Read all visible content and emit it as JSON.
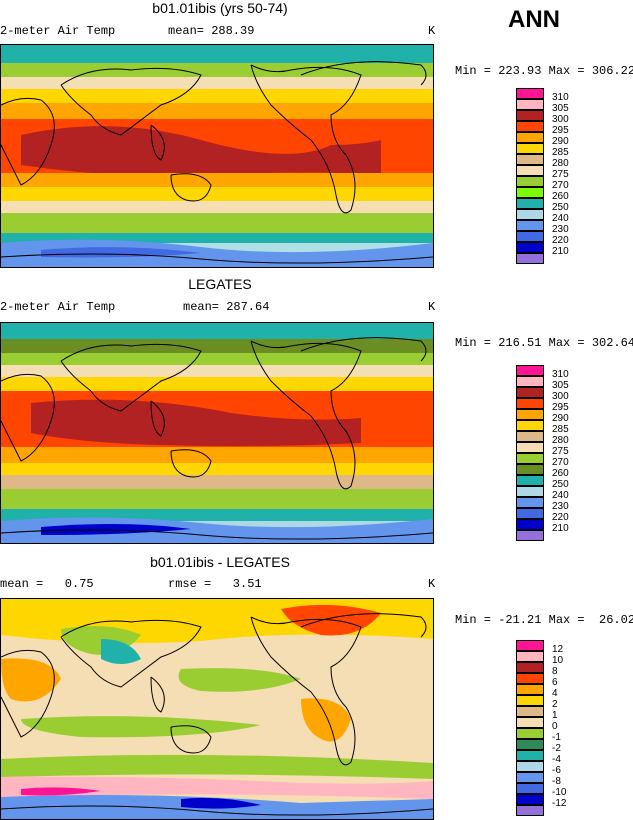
{
  "season": "ANN",
  "panels": [
    {
      "title": "b01.01ibis (yrs 50-74)",
      "left_text": "2-meter Air Temp",
      "mid_text": "mean= 288.39",
      "units": "K",
      "minmax": "Min = 223.93 Max = 306.22",
      "levels": [
        "310",
        "305",
        "300",
        "295",
        "290",
        "285",
        "280",
        "275",
        "270",
        "260",
        "250",
        "240",
        "230",
        "220",
        "210"
      ],
      "colors": [
        "#ff1493",
        "#ffb6c1",
        "#b22222",
        "#ff4500",
        "#ffa500",
        "#ffd700",
        "#deb887",
        "#f5deb3",
        "#9acd32",
        "#7cfc00",
        "#20b2aa",
        "#add8e6",
        "#6495ed",
        "#4169e1",
        "#0000cd",
        "#9370db"
      ]
    },
    {
      "title": "LEGATES",
      "left_text": "2-meter Air Temp",
      "mid_text": "mean= 287.64",
      "units": "K",
      "minmax": "Min = 216.51 Max = 302.64",
      "levels": [
        "310",
        "305",
        "300",
        "295",
        "290",
        "285",
        "280",
        "275",
        "270",
        "260",
        "250",
        "240",
        "230",
        "220",
        "210"
      ],
      "colors": [
        "#ff1493",
        "#ffb6c1",
        "#b22222",
        "#ff4500",
        "#ffa500",
        "#ffd700",
        "#deb887",
        "#f5deb3",
        "#9acd32",
        "#6b8e23",
        "#20b2aa",
        "#add8e6",
        "#6495ed",
        "#4169e1",
        "#0000cd",
        "#9370db"
      ]
    },
    {
      "title": "b01.01ibis - LEGATES",
      "left_text": "mean =   0.75",
      "mid_text": "rmse =   3.51",
      "units": "K",
      "minmax": "Min = -21.21 Max =  26.02",
      "levels": [
        "12",
        "10",
        "8",
        "6",
        "4",
        "2",
        "1",
        "0",
        "-1",
        "-2",
        "-4",
        "-6",
        "-8",
        "-10",
        "-12"
      ],
      "colors": [
        "#ff1493",
        "#ffb6c1",
        "#b22222",
        "#ff4500",
        "#ffa500",
        "#ffd700",
        "#deb887",
        "#f5deb3",
        "#9acd32",
        "#2e8b57",
        "#20b2aa",
        "#add8e6",
        "#6495ed",
        "#4169e1",
        "#0000cd",
        "#9370db"
      ]
    }
  ]
}
